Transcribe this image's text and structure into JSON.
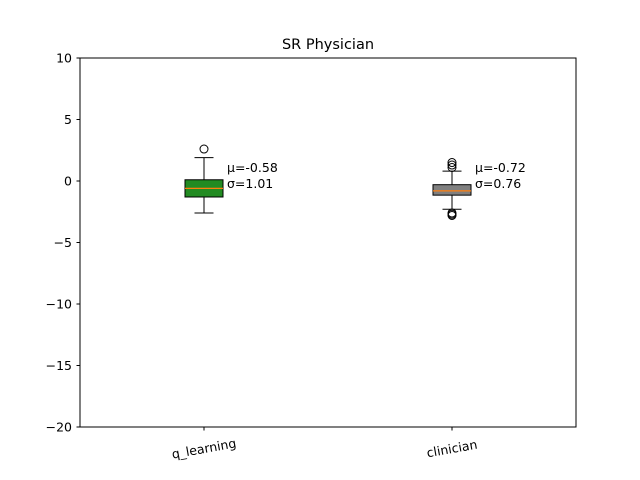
{
  "chart_data": {
    "type": "box",
    "title": "SR Physician",
    "xlabel": "",
    "ylabel": "",
    "ylim": [
      -20,
      10
    ],
    "yticks": [
      10,
      5,
      0,
      -5,
      -10,
      -15,
      -20
    ],
    "ytick_labels": [
      "10",
      "5",
      "0",
      "−5",
      "−10",
      "−15",
      "−20"
    ],
    "grid": false,
    "categories": [
      "q_learning",
      "clinician"
    ],
    "boxes": [
      {
        "name": "q_learning",
        "color": "#228b22",
        "q1": -1.3,
        "median": -0.6,
        "q3": 0.1,
        "whisker_low": -2.6,
        "whisker_high": 1.9,
        "outliers": [
          2.6
        ],
        "mean_label": "μ=-0.58",
        "std_label": "σ=1.01"
      },
      {
        "name": "clinician",
        "color": "#808080",
        "q1": -1.15,
        "median": -0.8,
        "q3": -0.3,
        "whisker_low": -2.3,
        "whisker_high": 0.8,
        "outliers": [
          1.1,
          1.3,
          1.5,
          -2.6,
          -2.7,
          -2.8
        ],
        "mean_label": "μ=-0.72",
        "std_label": "σ=0.76"
      }
    ],
    "median_color": "#ff7f0e"
  }
}
